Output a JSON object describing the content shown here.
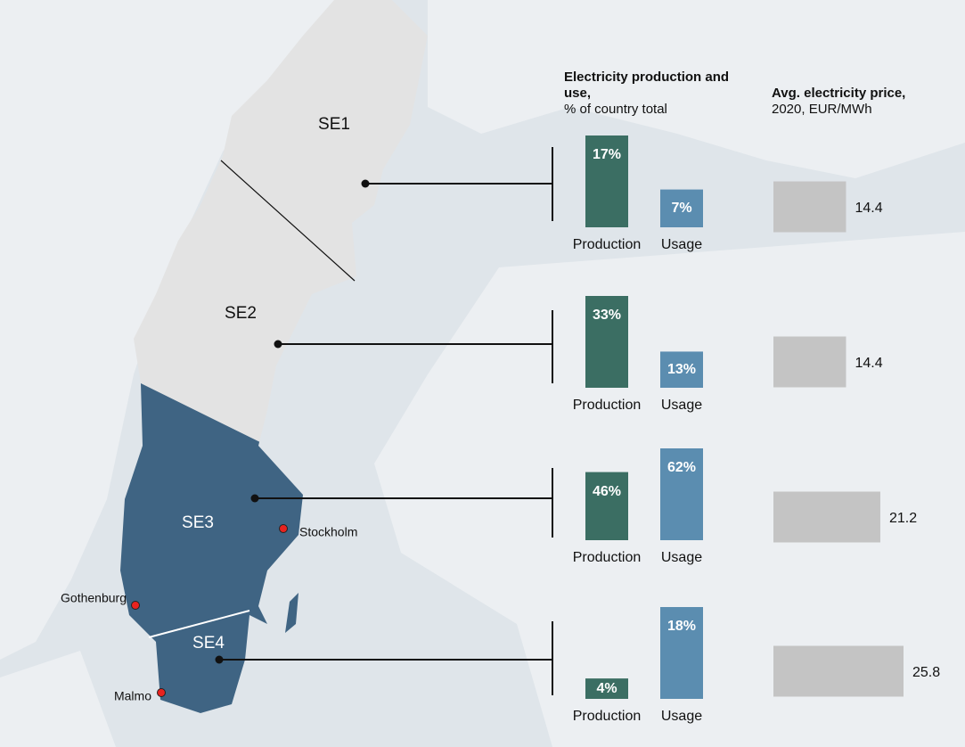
{
  "headers": {
    "production_title": "Electricity production and use,",
    "production_subtitle": "% of country total",
    "price_title": "Avg. electricity price,",
    "price_subtitle": "2020, EUR/MWh"
  },
  "cities": [
    "Stockholm",
    "Gothenburg",
    "Malmo"
  ],
  "price_xlim": [
    0,
    25.8
  ],
  "price_color": "#c4c4c4",
  "chart_data": [
    {
      "type": "bar",
      "title": "SE1",
      "categories": [
        "Production",
        "Usage"
      ],
      "values": [
        17,
        7
      ],
      "value_labels": [
        "17%",
        "7%"
      ],
      "colors": [
        "#3b6e63",
        "#5b8db0"
      ],
      "ylim": [
        0,
        17
      ],
      "price": 14.4
    },
    {
      "type": "bar",
      "title": "SE2",
      "categories": [
        "Production",
        "Usage"
      ],
      "values": [
        33,
        13
      ],
      "value_labels": [
        "33%",
        "13%"
      ],
      "colors": [
        "#3b6e63",
        "#5b8db0"
      ],
      "ylim": [
        0,
        33
      ],
      "price": 14.4
    },
    {
      "type": "bar",
      "title": "SE3",
      "categories": [
        "Production",
        "Usage"
      ],
      "values": [
        46,
        62
      ],
      "value_labels": [
        "46%",
        "62%"
      ],
      "colors": [
        "#3b6e63",
        "#5b8db0"
      ],
      "ylim": [
        0,
        62
      ],
      "price": 21.2
    },
    {
      "type": "bar",
      "title": "SE4",
      "categories": [
        "Production",
        "Usage"
      ],
      "values": [
        4,
        18
      ],
      "value_labels": [
        "4%",
        "18%"
      ],
      "colors": [
        "#3b6e63",
        "#5b8db0"
      ],
      "ylim": [
        0,
        18
      ],
      "price": 25.8
    }
  ]
}
